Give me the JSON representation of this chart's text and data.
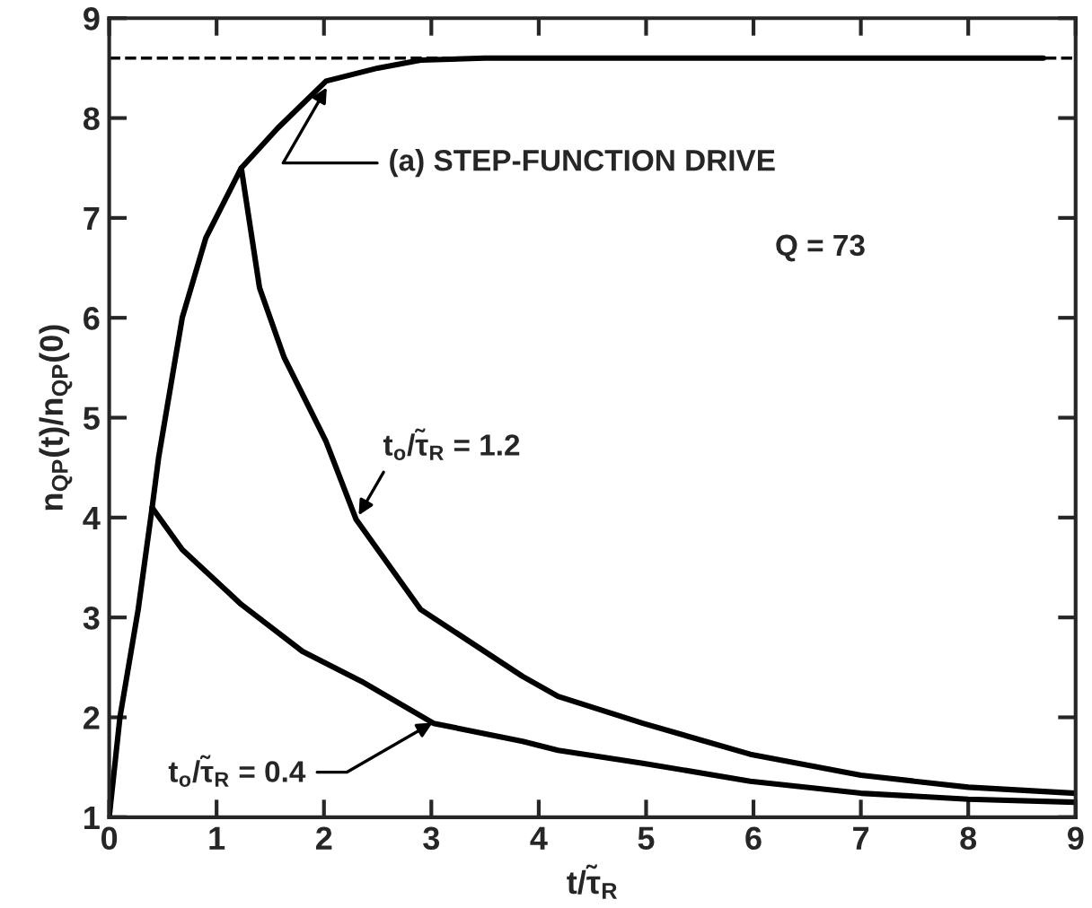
{
  "chart_data": {
    "type": "line",
    "xlabel": "t/τ̃$_{R}$",
    "ylabel": "n$_{QP}$(t)/n$_{QP}$(0)",
    "xlim": [
      0,
      9
    ],
    "ylim": [
      1,
      9
    ],
    "xticks": [
      0,
      1,
      2,
      3,
      4,
      5,
      6,
      7,
      8,
      9
    ],
    "yticks": [
      1,
      2,
      3,
      4,
      5,
      6,
      7,
      8,
      9
    ],
    "grid": false,
    "line_style": "solid",
    "marker": "none",
    "series": [
      {
        "color": "#000000",
        "x": [
          0,
          0.1,
          0.27,
          0.4,
          0.46,
          0.68,
          0.9,
          1.23,
          1.57,
          2.02,
          2.5,
          2.9,
          3.5,
          4.5,
          6,
          7.5,
          8.7
        ],
        "values": [
          1,
          2.0,
          3.08,
          4.1,
          4.6,
          6.0,
          6.8,
          7.5,
          7.9,
          8.37,
          8.5,
          8.58,
          8.6,
          8.6,
          8.6,
          8.6,
          8.6
        ]
      },
      {
        "color": "#000000",
        "x": [
          1.23,
          1.4,
          1.63,
          2.02,
          2.3,
          2.9,
          3.85,
          4.18,
          4.97,
          5.97,
          7.0,
          8.0,
          9.0
        ],
        "values": [
          7.5,
          6.3,
          5.6,
          4.76,
          3.98,
          3.08,
          2.41,
          2.21,
          1.94,
          1.63,
          1.42,
          1.3,
          1.24
        ]
      },
      {
        "color": "#000000",
        "x": [
          0.4,
          0.68,
          1.23,
          1.8,
          2.35,
          3.02,
          3.85,
          4.18,
          4.97,
          5.97,
          7.0,
          8.0,
          9.0
        ],
        "values": [
          4.1,
          3.68,
          3.13,
          2.66,
          2.36,
          1.94,
          1.76,
          1.67,
          1.54,
          1.36,
          1.24,
          1.18,
          1.15
        ]
      }
    ],
    "ref_lines": [
      {
        "axis": "y",
        "value": 8.6,
        "line_style": "dashed",
        "color": "#000000"
      }
    ],
    "annotations": [
      {
        "text": "(a) STEP-FUNCTION DRIVE",
        "x": 2.05,
        "y": 8.35
      },
      "Q = 73",
      {
        "text": "t$_{o}$/τ̃$_{R}$ = 1.2",
        "x": 2.3,
        "y": 3.98
      },
      {
        "text": "t$_{o}$/τ̃$_{R}$ = 0.4",
        "x": 3.05,
        "y": 1.97
      }
    ]
  }
}
